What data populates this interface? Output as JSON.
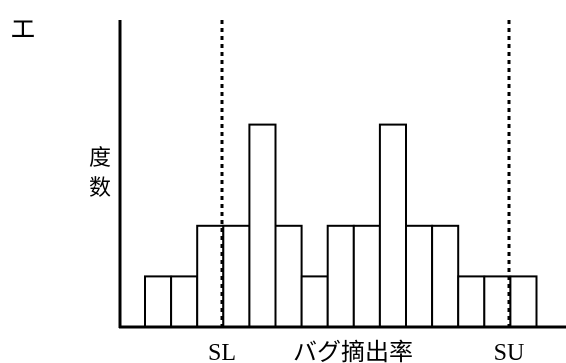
{
  "panel_label": "エ",
  "chart_data": {
    "type": "bar",
    "ylabel": "度数",
    "xlabel": "バグ摘出率",
    "values": [
      2,
      2,
      4,
      4,
      8,
      4,
      2,
      4,
      4,
      8,
      4,
      4,
      2,
      2,
      2
    ],
    "reference_lines": [
      {
        "label": "SL",
        "style": "dotted"
      },
      {
        "label": "SU",
        "style": "dotted"
      }
    ],
    "grid": false,
    "legend": "none"
  }
}
